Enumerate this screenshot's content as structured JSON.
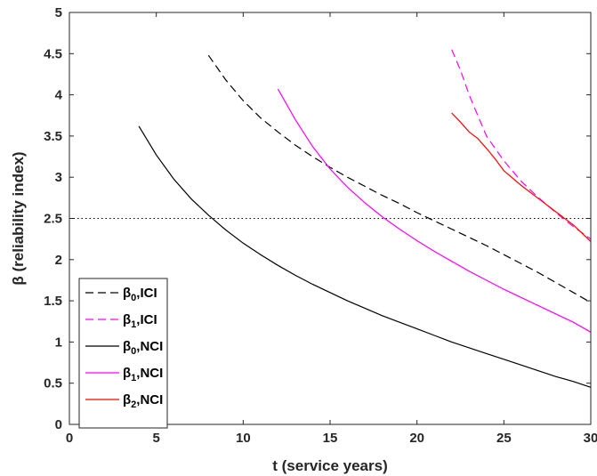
{
  "chart_data": {
    "type": "line",
    "title": "",
    "xlabel": "t (service years)",
    "ylabel": "β (reliability index)",
    "xlim": [
      0,
      30
    ],
    "ylim": [
      0,
      5
    ],
    "xticks": [
      0,
      5,
      10,
      15,
      20,
      25,
      30
    ],
    "yticks": [
      0,
      0.5,
      1,
      1.5,
      2,
      2.5,
      3,
      3.5,
      4,
      4.5,
      5
    ],
    "xtick_labels": [
      "0",
      "5",
      "10",
      "15",
      "20",
      "25",
      "30"
    ],
    "ytick_labels": [
      "0",
      "0.5",
      "1",
      "1.5",
      "2",
      "2.5",
      "3",
      "3.5",
      "4",
      "4.5",
      "5"
    ],
    "grid": false,
    "legend_position": "bottom-left",
    "reference_lines": [
      {
        "y": 2.5,
        "style": "dotted",
        "color": "#000000"
      }
    ],
    "series": [
      {
        "name": "β0,ICI",
        "label_base": "β",
        "label_sub": "0",
        "label_suffix": ",ICI",
        "color": "#000000",
        "dash": "dashed",
        "x": [
          8,
          9,
          10,
          11,
          12,
          13,
          14,
          15,
          16,
          17,
          18,
          19,
          20,
          21,
          22,
          23,
          24,
          25,
          26,
          27,
          28,
          29,
          30
        ],
        "y": [
          4.48,
          4.18,
          3.93,
          3.72,
          3.55,
          3.39,
          3.25,
          3.12,
          3.0,
          2.89,
          2.78,
          2.68,
          2.57,
          2.47,
          2.37,
          2.27,
          2.17,
          2.06,
          1.95,
          1.84,
          1.72,
          1.6,
          1.48
        ]
      },
      {
        "name": "β1,ICI",
        "label_base": "β",
        "label_sub": "1",
        "label_suffix": ",ICI",
        "color": "#ff00ff",
        "dash": "dashed",
        "x": [
          22,
          22.5,
          23,
          23.5,
          24,
          25,
          26,
          27,
          28,
          29,
          30
        ],
        "y": [
          4.55,
          4.3,
          4.0,
          3.75,
          3.5,
          3.2,
          2.95,
          2.75,
          2.57,
          2.4,
          2.25
        ]
      },
      {
        "name": "β0,NCI",
        "label_base": "β",
        "label_sub": "0",
        "label_suffix": ",NCI",
        "color": "#000000",
        "dash": "solid",
        "x": [
          4,
          5,
          6,
          7,
          8,
          9,
          10,
          11,
          12,
          13,
          14,
          15,
          16,
          17,
          18,
          19,
          20,
          21,
          22,
          23,
          24,
          25,
          26,
          27,
          28,
          29,
          30
        ],
        "y": [
          3.62,
          3.27,
          2.98,
          2.74,
          2.54,
          2.36,
          2.2,
          2.06,
          1.93,
          1.81,
          1.7,
          1.6,
          1.5,
          1.41,
          1.32,
          1.24,
          1.16,
          1.08,
          1.0,
          0.93,
          0.86,
          0.79,
          0.72,
          0.65,
          0.58,
          0.52,
          0.45
        ]
      },
      {
        "name": "β1,NCI",
        "label_base": "β",
        "label_sub": "1",
        "label_suffix": ",NCI",
        "color": "#ff00ff",
        "dash": "solid",
        "x": [
          12,
          13,
          14,
          15,
          16,
          17,
          18,
          19,
          20,
          21,
          22,
          23,
          24,
          25,
          26,
          27,
          28,
          29,
          30
        ],
        "y": [
          4.07,
          3.7,
          3.37,
          3.1,
          2.88,
          2.69,
          2.52,
          2.37,
          2.23,
          2.1,
          1.98,
          1.86,
          1.75,
          1.64,
          1.54,
          1.44,
          1.34,
          1.24,
          1.12
        ]
      },
      {
        "name": "β2,NCI",
        "label_base": "β",
        "label_sub": "2",
        "label_suffix": ",NCI",
        "color": "#ff0000",
        "dash": "solid",
        "x": [
          22,
          22.5,
          23,
          23.5,
          24,
          24.5,
          25,
          26,
          27,
          28,
          29,
          30
        ],
        "y": [
          3.78,
          3.67,
          3.55,
          3.47,
          3.35,
          3.22,
          3.08,
          2.9,
          2.74,
          2.58,
          2.42,
          2.22
        ]
      }
    ]
  }
}
